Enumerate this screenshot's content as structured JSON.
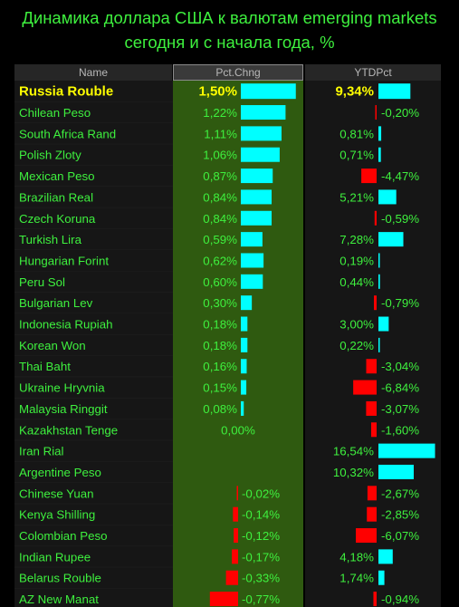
{
  "title_line1": "Динамика доллара США к валютам emerging markets",
  "title_line2": "сегодня и с начала года, %",
  "headers": {
    "name": "Name",
    "pct": "Pct.Chng",
    "ytd": "YTDPct"
  },
  "colors": {
    "title": "#3ef03e",
    "row_text": "#3ef03e",
    "highlight_text": "#ffff00",
    "positive_bar": "#00ffff",
    "negative_bar": "#ff0000",
    "pct_column_background": "#2f5a10"
  },
  "chart_data": {
    "type": "table",
    "title": "Динамика доллара США к валютам emerging markets сегодня и с начала года, %",
    "columns": [
      "Name",
      "Pct.Chng",
      "YTDPct"
    ],
    "highlight_row": "Russia Rouble",
    "rows": [
      {
        "name": "Russia Rouble",
        "pct": 1.5,
        "pct_label": "1,50%",
        "ytd": 9.34,
        "ytd_label": "9,34%"
      },
      {
        "name": "Chilean Peso",
        "pct": 1.22,
        "pct_label": "1,22%",
        "ytd": -0.2,
        "ytd_label": "-0,20%"
      },
      {
        "name": "South Africa Rand",
        "pct": 1.11,
        "pct_label": "1,11%",
        "ytd": 0.81,
        "ytd_label": "0,81%"
      },
      {
        "name": "Polish Zloty",
        "pct": 1.06,
        "pct_label": "1,06%",
        "ytd": 0.71,
        "ytd_label": "0,71%"
      },
      {
        "name": "Mexican Peso",
        "pct": 0.87,
        "pct_label": "0,87%",
        "ytd": -4.47,
        "ytd_label": "-4,47%"
      },
      {
        "name": "Brazilian Real",
        "pct": 0.84,
        "pct_label": "0,84%",
        "ytd": 5.21,
        "ytd_label": "5,21%"
      },
      {
        "name": "Czech Koruna",
        "pct": 0.84,
        "pct_label": "0,84%",
        "ytd": -0.59,
        "ytd_label": "-0,59%"
      },
      {
        "name": "Turkish Lira",
        "pct": 0.59,
        "pct_label": "0,59%",
        "ytd": 7.28,
        "ytd_label": "7,28%"
      },
      {
        "name": "Hungarian Forint",
        "pct": 0.62,
        "pct_label": "0,62%",
        "ytd": 0.19,
        "ytd_label": "0,19%"
      },
      {
        "name": "Peru Sol",
        "pct": 0.6,
        "pct_label": "0,60%",
        "ytd": 0.44,
        "ytd_label": "0,44%"
      },
      {
        "name": "Bulgarian Lev",
        "pct": 0.3,
        "pct_label": "0,30%",
        "ytd": -0.79,
        "ytd_label": "-0,79%"
      },
      {
        "name": "Indonesia Rupiah",
        "pct": 0.18,
        "pct_label": "0,18%",
        "ytd": 3.0,
        "ytd_label": "3,00%"
      },
      {
        "name": "Korean Won",
        "pct": 0.18,
        "pct_label": "0,18%",
        "ytd": 0.22,
        "ytd_label": "0,22%"
      },
      {
        "name": "Thai Baht",
        "pct": 0.16,
        "pct_label": "0,16%",
        "ytd": -3.04,
        "ytd_label": "-3,04%"
      },
      {
        "name": "Ukraine Hryvnia",
        "pct": 0.15,
        "pct_label": "0,15%",
        "ytd": -6.84,
        "ytd_label": "-6,84%"
      },
      {
        "name": "Malaysia Ringgit",
        "pct": 0.08,
        "pct_label": "0,08%",
        "ytd": -3.07,
        "ytd_label": "-3,07%"
      },
      {
        "name": "Kazakhstan Tenge",
        "pct": 0.0,
        "pct_label": "0,00%",
        "ytd": -1.6,
        "ytd_label": "-1,60%"
      },
      {
        "name": "Iran Rial",
        "pct": null,
        "pct_label": "",
        "ytd": 16.54,
        "ytd_label": "16,54%"
      },
      {
        "name": "Argentine Peso",
        "pct": null,
        "pct_label": "",
        "ytd": 10.32,
        "ytd_label": "10,32%"
      },
      {
        "name": "Chinese Yuan",
        "pct": -0.02,
        "pct_label": "-0,02%",
        "ytd": -2.67,
        "ytd_label": "-2,67%"
      },
      {
        "name": "Kenya Shilling",
        "pct": -0.14,
        "pct_label": "-0,14%",
        "ytd": -2.85,
        "ytd_label": "-2,85%"
      },
      {
        "name": "Colombian Peso",
        "pct": -0.12,
        "pct_label": "-0,12%",
        "ytd": -6.07,
        "ytd_label": "-6,07%"
      },
      {
        "name": "Indian Rupee",
        "pct": -0.17,
        "pct_label": "-0,17%",
        "ytd": 4.18,
        "ytd_label": "4,18%"
      },
      {
        "name": "Belarus Rouble",
        "pct": -0.33,
        "pct_label": "-0,33%",
        "ytd": 1.74,
        "ytd_label": "1,74%"
      },
      {
        "name": "AZ New Manat",
        "pct": -0.77,
        "pct_label": "-0,77%",
        "ytd": -0.94,
        "ytd_label": "-0,94%"
      }
    ]
  }
}
